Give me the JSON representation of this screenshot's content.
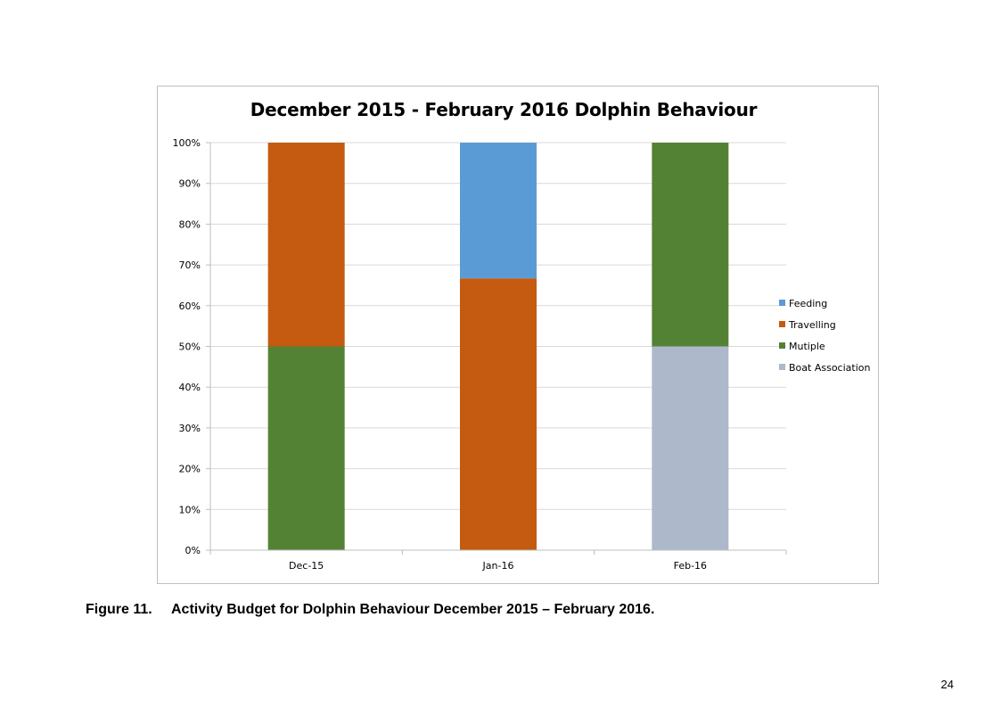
{
  "chart_data": {
    "type": "bar",
    "stacked": "percent",
    "title": "December 2015 - February 2016 Dolphin Behaviour",
    "xlabel": "",
    "ylabel": "",
    "ylim": [
      0,
      100
    ],
    "y_ticks": [
      "0%",
      "10%",
      "20%",
      "30%",
      "40%",
      "50%",
      "60%",
      "70%",
      "80%",
      "90%",
      "100%"
    ],
    "categories": [
      "Dec-15",
      "Jan-16",
      "Feb-16"
    ],
    "series": [
      {
        "name": "Boat Association",
        "color": "#adb9ca",
        "values": [
          0,
          0,
          50
        ]
      },
      {
        "name": "Mutiple",
        "color": "#548235",
        "values": [
          50,
          0,
          50
        ]
      },
      {
        "name": "Travelling",
        "color": "#c55a11",
        "values": [
          50,
          66.7,
          0
        ]
      },
      {
        "name": "Feeding",
        "color": "#5b9bd5",
        "values": [
          0,
          33.3,
          0
        ]
      }
    ],
    "legend_order": [
      "Feeding",
      "Travelling",
      "Mutiple",
      "Boat Association"
    ],
    "grid": true,
    "legend_position": "right"
  },
  "caption": {
    "number": "Figure 11.",
    "text": "Activity Budget for Dolphin Behaviour December 2015 – February 2016."
  },
  "page_number": "24"
}
